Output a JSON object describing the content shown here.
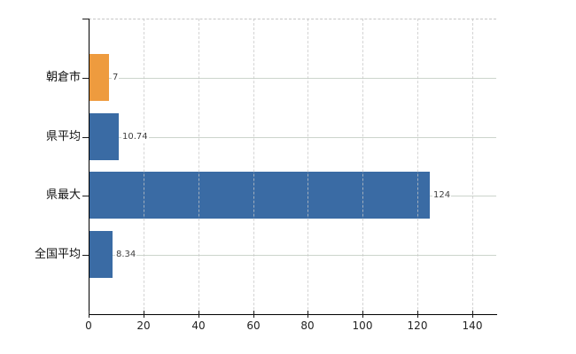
{
  "chart_data": {
    "type": "bar",
    "orientation": "horizontal",
    "title": "",
    "xlabel": "",
    "ylabel": "",
    "categories": [
      "朝倉市",
      "県平均",
      "県最大",
      "全国平均"
    ],
    "values": [
      7,
      10.74,
      124,
      8.34
    ],
    "value_labels": [
      "7",
      "10.74",
      "124",
      "8.34"
    ],
    "bar_colors": [
      "#EE9B3E",
      "#3A6BA4",
      "#3A6BA4",
      "#3A6BA4"
    ],
    "x_ticks": [
      0,
      20,
      40,
      60,
      80,
      100,
      120,
      140
    ],
    "xlim": [
      0,
      148.7
    ],
    "grid": {
      "vertical": "dashed at every x tick",
      "horizontal": "solid line at each category center",
      "top_border": "dashed"
    },
    "legend": "none"
  },
  "colors": {
    "bar_orange": "#EE9B3E",
    "bar_blue": "#3A6BA4",
    "axis": "#000000",
    "grid_vertical": "#d4d4d4",
    "grid_horizontal": "#ccd4cc",
    "top_border": "#c6c6c6",
    "value_label_text": "#3f3f3f",
    "category_label_text": "#111111",
    "tick_label_text": "#222222",
    "background": "#ffffff"
  }
}
